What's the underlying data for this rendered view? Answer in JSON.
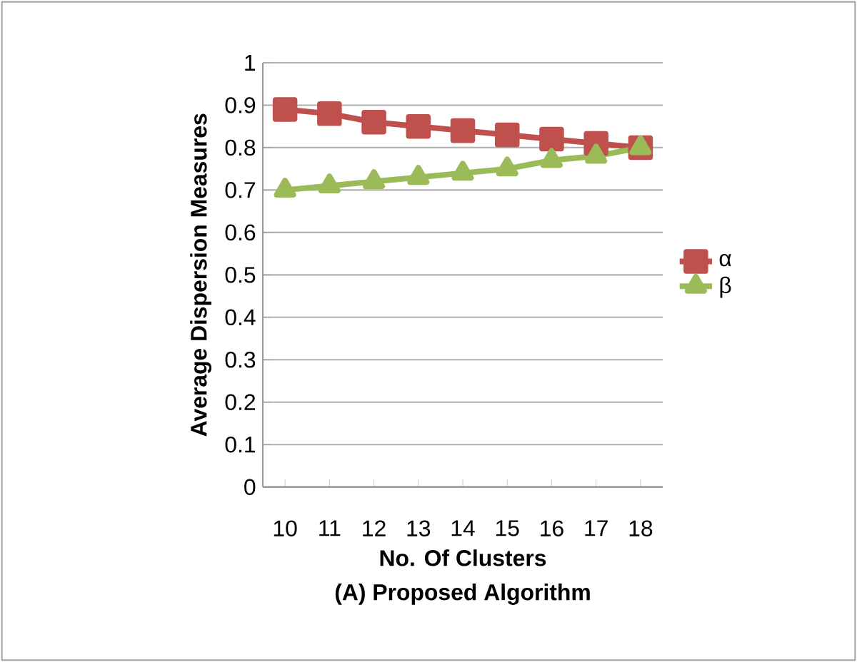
{
  "chart_data": {
    "type": "line",
    "xlabel": "No. Of Clusters",
    "title": "(A) Proposed Algorithm",
    "ylabel": "Average Dispersion Measures",
    "categories": [
      "10",
      "11",
      "12",
      "13",
      "14",
      "15",
      "16",
      "17",
      "18"
    ],
    "series": [
      {
        "name": "α",
        "color": "#c0504d",
        "marker": "square",
        "values": [
          0.89,
          0.88,
          0.86,
          0.85,
          0.84,
          0.83,
          0.82,
          0.81,
          0.8
        ]
      },
      {
        "name": "β",
        "color": "#9bbb59",
        "marker": "triangle",
        "values": [
          0.7,
          0.71,
          0.72,
          0.73,
          0.74,
          0.75,
          0.77,
          0.78,
          0.8
        ]
      }
    ],
    "ylim": [
      0,
      1
    ],
    "yticks": [
      0,
      0.1,
      0.2,
      0.3,
      0.4,
      0.5,
      0.6,
      0.7,
      0.8,
      0.9,
      1
    ],
    "grid": "y",
    "legend": "right"
  }
}
